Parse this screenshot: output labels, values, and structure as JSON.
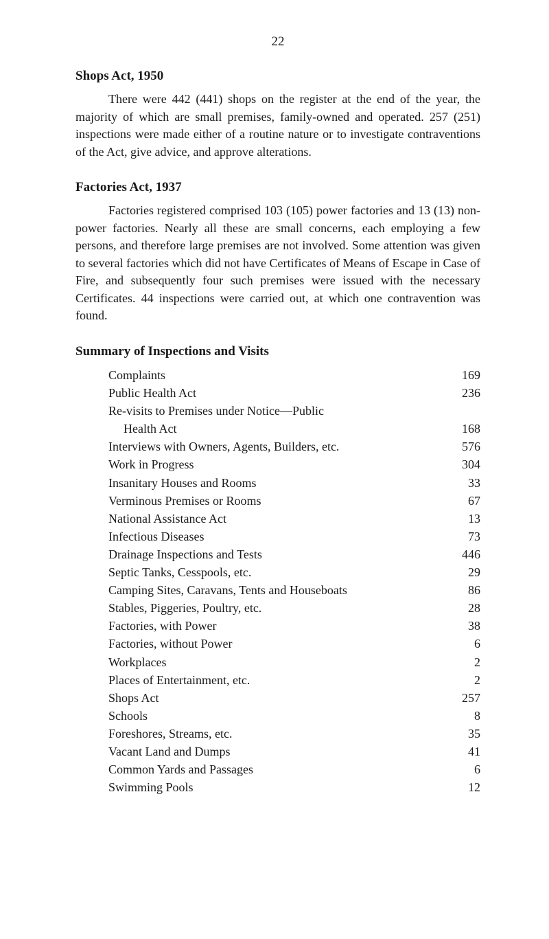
{
  "pageNumber": "22",
  "section1": {
    "heading": "Shops Act, 1950",
    "paragraph": "There were 442 (441) shops on the register at the end of the year, the majority of which are small premises, family-owned and operated. 257 (251) inspections were made either of a routine nature or to investigate contraventions of the Act, give advice, and approve alterations."
  },
  "section2": {
    "heading": "Factories Act, 1937",
    "paragraph": "Factories registered comprised 103 (105) power factories and 13 (13) non-power factories. Nearly all these are small concerns, each employing a few persons, and therefore large premises are not involved. Some attention was given to several factories which did not have Certificates of Means of Escape in Case of Fire, and subsequently four such premises were issued with the necessary Certificates. 44 inspections were carried out, at which one contravention was found."
  },
  "section3": {
    "heading": "Summary of Inspections and Visits",
    "items": [
      {
        "label": "Complaints",
        "value": "169",
        "sub": false
      },
      {
        "label": "Public Health Act",
        "value": "236",
        "sub": false
      },
      {
        "label": "Re-visits to Premises under Notice—Public",
        "value": "",
        "sub": false,
        "nocount": true
      },
      {
        "label": "Health Act",
        "value": "168",
        "sub": true
      },
      {
        "label": "Interviews with Owners, Agents, Builders, etc.",
        "value": "576",
        "sub": false
      },
      {
        "label": "Work in Progress",
        "value": "304",
        "sub": false
      },
      {
        "label": "Insanitary Houses and Rooms",
        "value": "33",
        "sub": false
      },
      {
        "label": "Verminous Premises or Rooms",
        "value": "67",
        "sub": false
      },
      {
        "label": "National Assistance Act",
        "value": "13",
        "sub": false
      },
      {
        "label": "Infectious Diseases",
        "value": "73",
        "sub": false
      },
      {
        "label": "Drainage Inspections and Tests",
        "value": "446",
        "sub": false
      },
      {
        "label": "Septic Tanks, Cesspools, etc.",
        "value": "29",
        "sub": false
      },
      {
        "label": "Camping Sites, Caravans, Tents and Houseboats",
        "value": "86",
        "sub": false
      },
      {
        "label": "Stables, Piggeries, Poultry, etc.",
        "value": "28",
        "sub": false
      },
      {
        "label": "Factories, with Power",
        "value": "38",
        "sub": false
      },
      {
        "label": "Factories, without Power",
        "value": "6",
        "sub": false
      },
      {
        "label": "Workplaces",
        "value": "2",
        "sub": false
      },
      {
        "label": "Places of Entertainment, etc.",
        "value": "2",
        "sub": false
      },
      {
        "label": "Shops Act",
        "value": "257",
        "sub": false
      },
      {
        "label": "Schools",
        "value": "8",
        "sub": false
      },
      {
        "label": "Foreshores, Streams, etc.",
        "value": "35",
        "sub": false
      },
      {
        "label": "Vacant Land and Dumps",
        "value": "41",
        "sub": false
      },
      {
        "label": "Common Yards and Passages",
        "value": "6",
        "sub": false
      },
      {
        "label": "Swimming Pools",
        "value": "12",
        "sub": false
      }
    ]
  },
  "styling": {
    "backgroundColor": "#ffffff",
    "textColor": "#1a1a1a",
    "bodyFontSize": 18,
    "headingFontSize": 19,
    "pageWidth": 800,
    "pageHeight": 1367
  }
}
